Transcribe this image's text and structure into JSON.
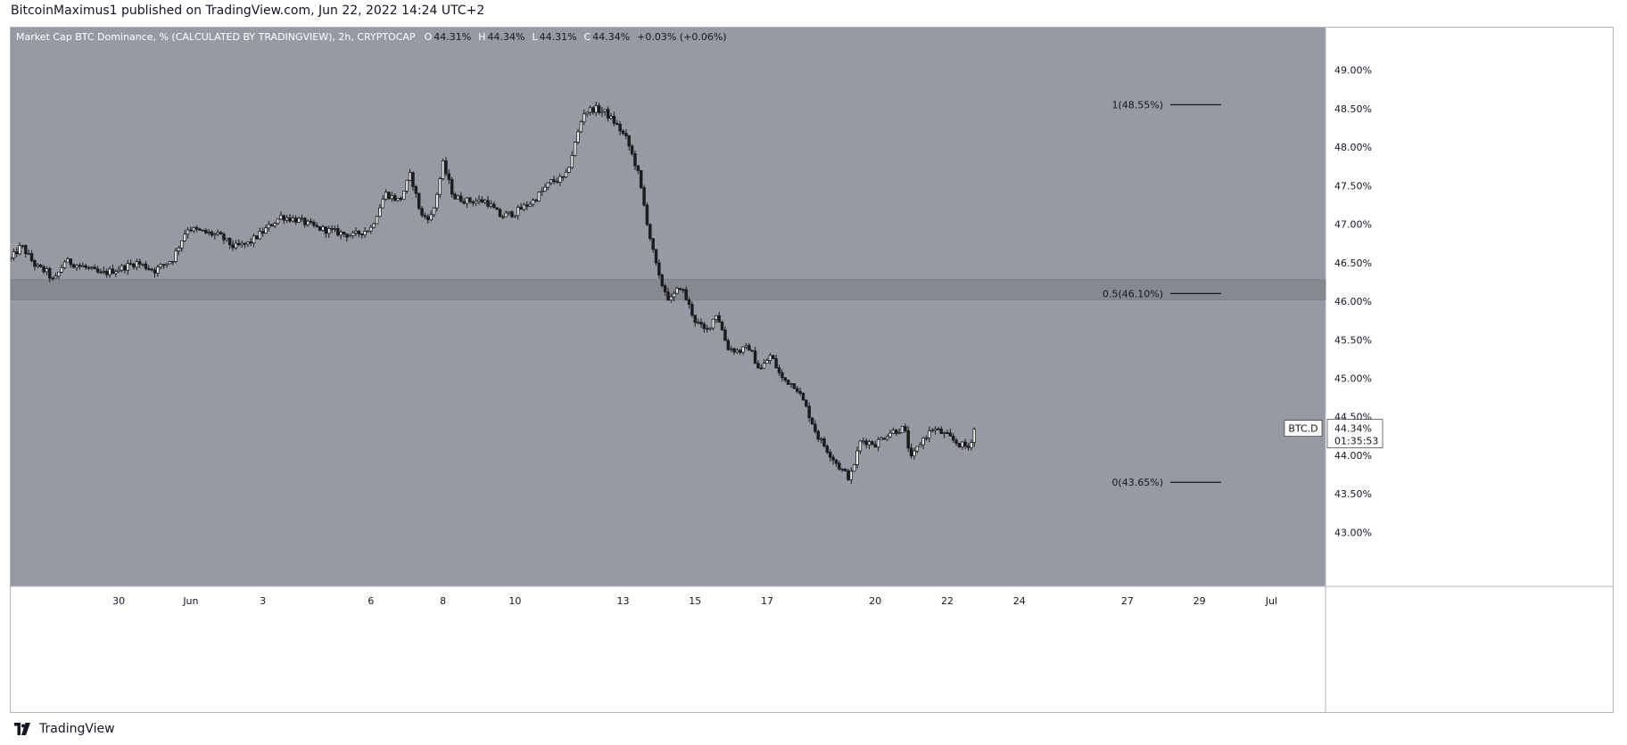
{
  "publication": {
    "text": "BitcoinMaximus1 published on TradingView.com, Jun 22, 2022 14:24 UTC+2"
  },
  "footer": {
    "brand": "TradingView"
  },
  "colors": {
    "background": "#969aa2",
    "zone": "#868990",
    "candle": "#1c1c1e",
    "axis_bg": "#ffffff",
    "text": "#131722"
  },
  "chart_data": {
    "type": "candlestick",
    "title": "Market Cap BTC Dominance, % (CALCULATED BY TRADINGVIEW), 2h, CRYPTOCAP",
    "ohlc_label": [
      {
        "key": "O",
        "value": "44.31%"
      },
      {
        "key": "H",
        "value": "44.34%"
      },
      {
        "key": "L",
        "value": "44.31%"
      },
      {
        "key": "C",
        "value": "44.34%"
      }
    ],
    "change_label": "+0.03% (+0.06%)",
    "ylim": [
      42.3,
      49.55
    ],
    "y_ticks": [
      "49.00%",
      "48.50%",
      "48.00%",
      "47.50%",
      "47.00%",
      "46.50%",
      "46.00%",
      "45.50%",
      "45.00%",
      "44.50%",
      "44.00%",
      "43.50%",
      "43.00%"
    ],
    "y_tick_values": [
      49.0,
      48.5,
      48.0,
      47.5,
      47.0,
      46.5,
      46.0,
      45.5,
      45.0,
      44.5,
      44.0,
      43.5,
      43.0
    ],
    "xlim": [
      27.0,
      63.5
    ],
    "x_ticks": [
      {
        "label": "30",
        "day": 30
      },
      {
        "label": "Jun",
        "day": 32
      },
      {
        "label": "3",
        "day": 34
      },
      {
        "label": "6",
        "day": 37
      },
      {
        "label": "8",
        "day": 39
      },
      {
        "label": "10",
        "day": 41
      },
      {
        "label": "13",
        "day": 44
      },
      {
        "label": "15",
        "day": 46
      },
      {
        "label": "17",
        "day": 48
      },
      {
        "label": "20",
        "day": 51
      },
      {
        "label": "22",
        "day": 53
      },
      {
        "label": "24",
        "day": 55
      },
      {
        "label": "27",
        "day": 58
      },
      {
        "label": "29",
        "day": 60
      },
      {
        "label": "Jul",
        "day": 62
      }
    ],
    "support_zone": [
      46.02,
      46.28
    ],
    "fib_levels": [
      {
        "label": "1(48.55%)",
        "value": 48.55
      },
      {
        "label": "0.5(46.10%)",
        "value": 46.1
      },
      {
        "label": "0(43.65%)",
        "value": 43.65
      }
    ],
    "current_price": {
      "symbol": "BTC.D",
      "value": 44.34,
      "price_label": "44.34%",
      "timer": "01:35:53"
    },
    "note_x": "x values are day of the month counting from May (May 27 = 27, Jun 1 = 32, Jun 22 = 53); each anchor is [day, dominance %]",
    "path_anchors": [
      [
        27.0,
        46.55
      ],
      [
        27.3,
        46.72
      ],
      [
        27.7,
        46.45
      ],
      [
        28.0,
        46.38
      ],
      [
        28.2,
        46.25
      ],
      [
        28.5,
        46.52
      ],
      [
        29.0,
        46.45
      ],
      [
        29.5,
        46.35
      ],
      [
        30.0,
        46.42
      ],
      [
        30.5,
        46.5
      ],
      [
        31.0,
        46.4
      ],
      [
        31.5,
        46.55
      ],
      [
        31.9,
        46.95
      ],
      [
        32.3,
        46.9
      ],
      [
        32.8,
        46.85
      ],
      [
        33.2,
        46.7
      ],
      [
        33.6,
        46.75
      ],
      [
        34.0,
        46.9
      ],
      [
        34.5,
        47.1
      ],
      [
        35.0,
        47.05
      ],
      [
        35.5,
        46.95
      ],
      [
        36.0,
        46.9
      ],
      [
        36.5,
        46.85
      ],
      [
        37.0,
        46.95
      ],
      [
        37.4,
        47.4
      ],
      [
        37.8,
        47.3
      ],
      [
        38.1,
        47.65
      ],
      [
        38.4,
        47.1
      ],
      [
        38.7,
        47.1
      ],
      [
        39.0,
        47.78
      ],
      [
        39.3,
        47.35
      ],
      [
        39.7,
        47.3
      ],
      [
        40.2,
        47.3
      ],
      [
        40.6,
        47.1
      ],
      [
        41.0,
        47.15
      ],
      [
        41.5,
        47.3
      ],
      [
        42.0,
        47.55
      ],
      [
        42.4,
        47.6
      ],
      [
        42.7,
        48.1
      ],
      [
        42.9,
        48.45
      ],
      [
        43.2,
        48.5
      ],
      [
        43.5,
        48.45
      ],
      [
        43.8,
        48.3
      ],
      [
        44.1,
        48.1
      ],
      [
        44.4,
        47.7
      ],
      [
        44.6,
        47.2
      ],
      [
        44.8,
        46.7
      ],
      [
        45.0,
        46.3
      ],
      [
        45.3,
        46.0
      ],
      [
        45.6,
        46.2
      ],
      [
        46.0,
        45.75
      ],
      [
        46.3,
        45.6
      ],
      [
        46.6,
        45.85
      ],
      [
        46.9,
        45.4
      ],
      [
        47.2,
        45.35
      ],
      [
        47.5,
        45.4
      ],
      [
        47.8,
        45.1
      ],
      [
        48.1,
        45.3
      ],
      [
        48.4,
        45.0
      ],
      [
        48.8,
        44.9
      ],
      [
        49.1,
        44.6
      ],
      [
        49.4,
        44.25
      ],
      [
        49.7,
        44.05
      ],
      [
        50.0,
        43.85
      ],
      [
        50.3,
        43.7
      ],
      [
        50.6,
        44.2
      ],
      [
        51.0,
        44.15
      ],
      [
        51.4,
        44.3
      ],
      [
        51.8,
        44.35
      ],
      [
        52.0,
        43.95
      ],
      [
        52.3,
        44.2
      ],
      [
        52.6,
        44.35
      ],
      [
        53.0,
        44.25
      ],
      [
        53.3,
        44.15
      ],
      [
        53.6,
        44.1
      ],
      [
        53.75,
        44.34
      ]
    ]
  }
}
